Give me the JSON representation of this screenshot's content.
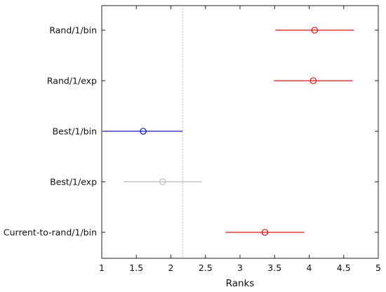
{
  "chart_data": {
    "type": "scatter",
    "title": "",
    "xlabel": "Ranks",
    "ylabel": "",
    "xlim": [
      1,
      5
    ],
    "xticks": [
      1,
      1.5,
      2,
      2.5,
      3,
      3.5,
      4,
      4.5,
      5
    ],
    "xtick_labels": [
      "1",
      "1.5",
      "2",
      "2.5",
      "3",
      "3.5",
      "4",
      "4.5",
      "5"
    ],
    "grid": false,
    "reference_line": 2.17,
    "categories": [
      "Rand/1/bin",
      "Rand/1/exp",
      "Best/1/bin",
      "Best/1/exp",
      "Current-to-rand/1/bin"
    ],
    "points": [
      {
        "label": "Rand/1/bin",
        "mean": 4.08,
        "low": 3.51,
        "high": 4.65,
        "color": "#ee1111"
      },
      {
        "label": "Rand/1/exp",
        "mean": 4.06,
        "low": 3.49,
        "high": 4.63,
        "color": "#ee1111"
      },
      {
        "label": "Best/1/bin",
        "mean": 1.6,
        "low": 1.03,
        "high": 2.17,
        "color": "#1111dd"
      },
      {
        "label": "Best/1/exp",
        "mean": 1.88,
        "low": 1.31,
        "high": 2.45,
        "color": "#bbbbbb"
      },
      {
        "label": "Current-to-rand/1/bin",
        "mean": 3.36,
        "low": 2.79,
        "high": 3.93,
        "color": "#ee1111"
      }
    ]
  }
}
